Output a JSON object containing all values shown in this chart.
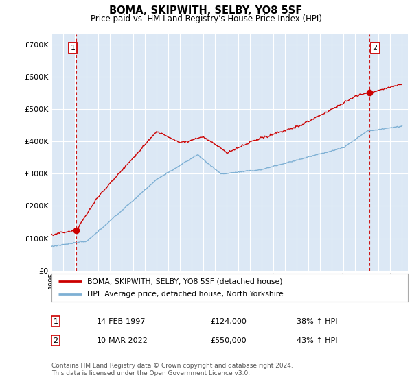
{
  "title": "BOMA, SKIPWITH, SELBY, YO8 5SF",
  "subtitle": "Price paid vs. HM Land Registry's House Price Index (HPI)",
  "xlim": [
    1995.0,
    2025.5
  ],
  "ylim": [
    0,
    730000
  ],
  "yticks": [
    0,
    100000,
    200000,
    300000,
    400000,
    500000,
    600000,
    700000
  ],
  "ytick_labels": [
    "£0",
    "£100K",
    "£200K",
    "£300K",
    "£400K",
    "£500K",
    "£600K",
    "£700K"
  ],
  "legend_line1": "BOMA, SKIPWITH, SELBY, YO8 5SF (detached house)",
  "legend_line2": "HPI: Average price, detached house, North Yorkshire",
  "sale1_label": "1",
  "sale1_date": "14-FEB-1997",
  "sale1_price": "£124,000",
  "sale1_hpi": "38% ↑ HPI",
  "sale1_x": 1997.12,
  "sale1_y": 124000,
  "sale2_label": "2",
  "sale2_date": "10-MAR-2022",
  "sale2_price": "£550,000",
  "sale2_hpi": "43% ↑ HPI",
  "sale2_x": 2022.19,
  "sale2_y": 550000,
  "line1_color": "#cc0000",
  "line2_color": "#7eb0d4",
  "plot_bg": "#dce8f5",
  "grid_color": "#ffffff",
  "vline_color": "#cc0000",
  "footer": "Contains HM Land Registry data © Crown copyright and database right 2024.\nThis data is licensed under the Open Government Licence v3.0."
}
